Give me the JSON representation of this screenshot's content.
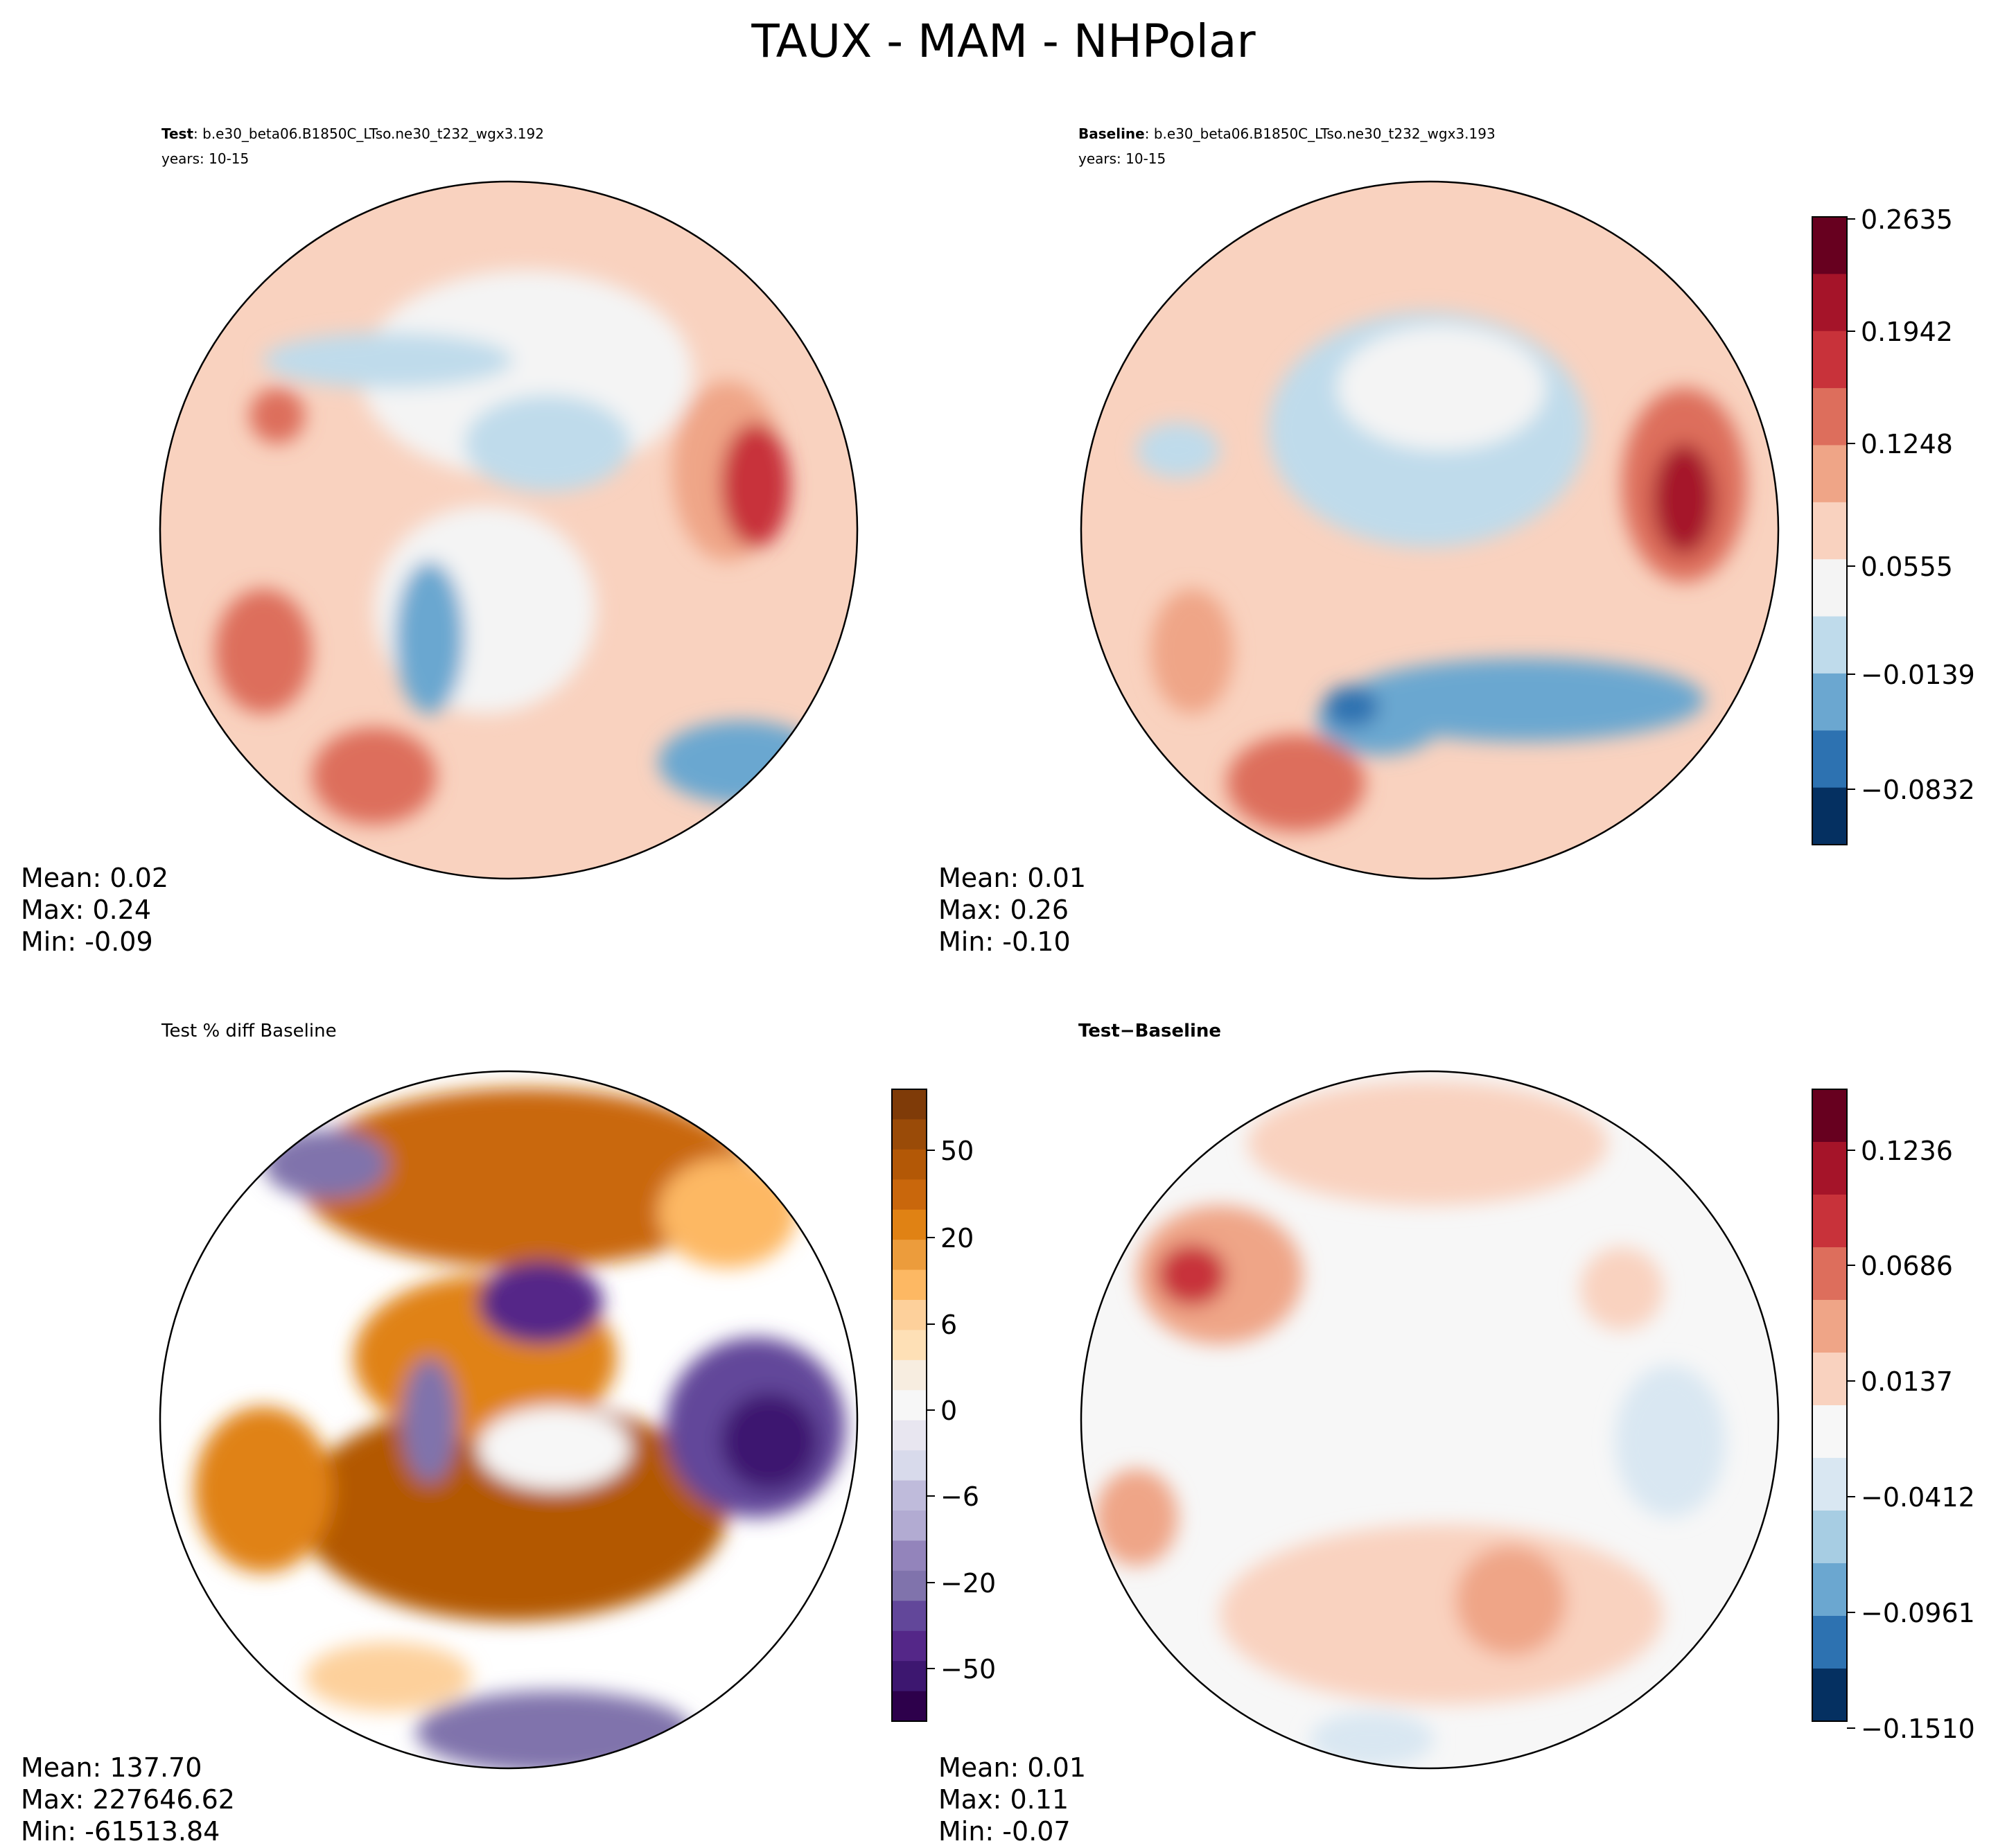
{
  "figure": {
    "title": "TAUX - MAM - NHPolar"
  },
  "chart_data": [
    {
      "type": "heatmap",
      "projection": "north-polar-stereographic",
      "title_bold": "Test",
      "title_sep": ":",
      "title_rest": "b.e30_beta06.B1850C_LTso.ne30_t232_wgx3.192",
      "subtitle": "years: 10-15",
      "stats": {
        "mean": "Mean:  0.02",
        "max": "Max:  0.24",
        "min": "Min: -0.09"
      },
      "colormap": "RdBu_r",
      "levels": 10,
      "colorbar": null
    },
    {
      "type": "heatmap",
      "projection": "north-polar-stereographic",
      "title_bold": "Baseline",
      "title_sep": ":",
      "title_rest": "b.e30_beta06.B1850C_LTso.ne30_t232_wgx3.193",
      "subtitle": "years: 10-15",
      "stats": {
        "mean": "Mean:  0.01",
        "max": "Max:  0.26",
        "min": "Min: -0.10"
      },
      "colormap": "RdBu_r",
      "levels": 10,
      "colorbar": {
        "ticks": [
          "0.2635",
          "0.1942",
          "0.1248",
          "0.0555",
          "−0.0139",
          "−0.0832"
        ],
        "colors": [
          "#67001f",
          "#a51429",
          "#c8323a",
          "#dd6e5c",
          "#efa587",
          "#f9d2bf",
          "#f4f4f4",
          "#bfdbeb",
          "#6ba7d0",
          "#2d72b1",
          "#053061"
        ]
      }
    },
    {
      "type": "heatmap",
      "projection": "north-polar-stereographic",
      "title_bold": "",
      "title_sep": "",
      "title_rest": "Test % diff Baseline",
      "subtitle": "",
      "stats": {
        "mean": "Mean: 137.70",
        "max": "Max: 227646.62",
        "min": "Min: -61513.84"
      },
      "colormap": "PuOr_r",
      "colorbar": {
        "ticks": [
          "50",
          "20",
          "6",
          "0",
          "−6",
          "−20",
          "−50"
        ],
        "colors": [
          "#7f3b08",
          "#9a4b08",
          "#b35806",
          "#c9670c",
          "#e08214",
          "#ec9c3c",
          "#fdb863",
          "#fdd09b",
          "#fee0b6",
          "#f7ede0",
          "#f7f7f7",
          "#e8e6f0",
          "#d8daeb",
          "#bfbbdb",
          "#b2abd2",
          "#9384bb",
          "#8073ac",
          "#62479a",
          "#542788",
          "#3d1770",
          "#2d004b"
        ]
      }
    },
    {
      "type": "heatmap",
      "projection": "north-polar-stereographic",
      "title_bold": "Test",
      "title_sep": "−",
      "title_rest": "Baseline",
      "subtitle": "",
      "stats": {
        "mean": "Mean:  0.01",
        "max": "Max:  0.11",
        "min": "Min: -0.07"
      },
      "colormap": "RdBu_r",
      "colorbar": {
        "ticks": [
          "0.1236",
          "0.0686",
          "0.0137",
          "−0.0412",
          "−0.0961",
          "−0.1510"
        ],
        "colors": [
          "#67001f",
          "#a51429",
          "#c8323a",
          "#dd6e5c",
          "#efa587",
          "#f9d2bf",
          "#f7f7f7",
          "#d9e7f2",
          "#a7cde3",
          "#6ba7d0",
          "#2d72b1",
          "#053061"
        ]
      }
    }
  ]
}
